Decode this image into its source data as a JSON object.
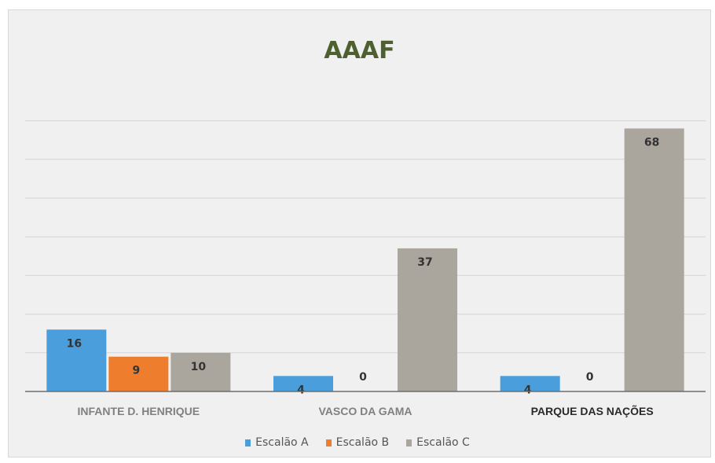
{
  "chart_data": {
    "type": "bar",
    "title": "AAAF",
    "categories": [
      "INFANTE D. HENRIQUE",
      "VASCO DA GAMA",
      "PARQUE DAS NAÇÕES"
    ],
    "series": [
      {
        "name": "Escalão A",
        "values": [
          16,
          4,
          4
        ],
        "color": "#4a9edb"
      },
      {
        "name": "Escalão B",
        "values": [
          9,
          0,
          0
        ],
        "color": "#ee7d2e"
      },
      {
        "name": "Escalão C",
        "values": [
          10,
          37,
          68
        ],
        "color": "#aaa69e"
      }
    ],
    "ylim": [
      0,
      70
    ],
    "grid": true,
    "legend": "bottom"
  }
}
